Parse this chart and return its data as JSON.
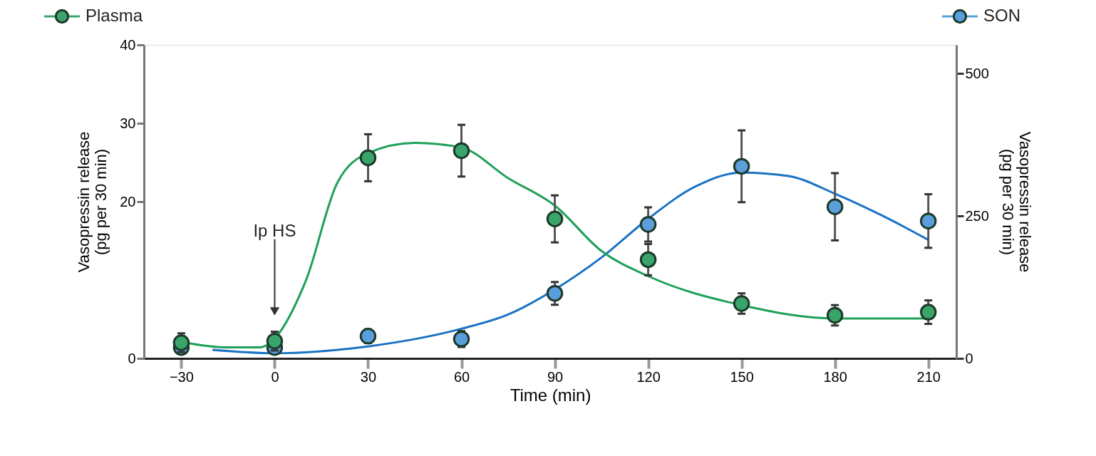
{
  "chart_data": {
    "type": "line",
    "xlabel": "Time (min)",
    "ylabel": "Vasopressin release\n(pg per 30 min)",
    "y2label": "Vasopressin release\n(pg per 30 min)",
    "xlim": [
      -42,
      219
    ],
    "xticks": [
      -30,
      0,
      30,
      60,
      90,
      120,
      150,
      180,
      210
    ],
    "ylim": [
      0,
      40
    ],
    "yticks": [
      0,
      20,
      30,
      40
    ],
    "y2lim": [
      0,
      550
    ],
    "y2ticks": [
      0,
      250,
      500
    ],
    "grid": false,
    "legend": "top",
    "marker": "circle",
    "series": [
      {
        "name": "Plasma",
        "type": "scatter",
        "axis": "y",
        "color": "#3aa56b",
        "x": [
          -30,
          0,
          30,
          60,
          90,
          120,
          150,
          180,
          210
        ],
        "values": [
          2.0,
          2.2,
          25.6,
          26.5,
          17.8,
          12.6,
          7.0,
          5.5,
          5.9
        ],
        "errors": [
          1.2,
          1.2,
          3.0,
          3.3,
          3.0,
          2.0,
          1.3,
          1.3,
          1.5
        ]
      },
      {
        "name": "SON",
        "type": "scatter",
        "axis": "y2",
        "color": "#5a9fdc",
        "x": [
          -30,
          0,
          30,
          60,
          90,
          120,
          150,
          180,
          210
        ],
        "values": [
          19,
          19,
          39,
          34,
          114,
          235,
          337,
          266,
          241
        ],
        "errors": [
          10,
          10,
          12,
          14,
          20,
          30,
          63,
          59,
          47
        ]
      },
      {
        "type": "line",
        "axis": "y",
        "color": "#1fa05a",
        "marker": "none",
        "x": [
          -30,
          -15,
          -5,
          10,
          20,
          30,
          45,
          60,
          75,
          90,
          105,
          120,
          150,
          180,
          210
        ],
        "values": [
          2.1,
          1.4,
          1.4,
          9.9,
          22.3,
          26.2,
          27.5,
          26.9,
          23,
          19.5,
          13.7,
          10.5,
          6.8,
          5.1,
          5.1
        ]
      },
      {
        "type": "line",
        "axis": "y2",
        "color": "#1a72c4",
        "marker": "none",
        "x": [
          -20,
          0,
          30,
          60,
          75,
          90,
          105,
          120,
          135,
          150,
          165,
          180,
          195,
          210
        ],
        "values": [
          15,
          9,
          21,
          52,
          77,
          121,
          177,
          245,
          301,
          326,
          320,
          289,
          251,
          208
        ]
      }
    ],
    "annotations": [
      {
        "text": "Ip HS",
        "x": 0,
        "y": 6
      }
    ]
  }
}
